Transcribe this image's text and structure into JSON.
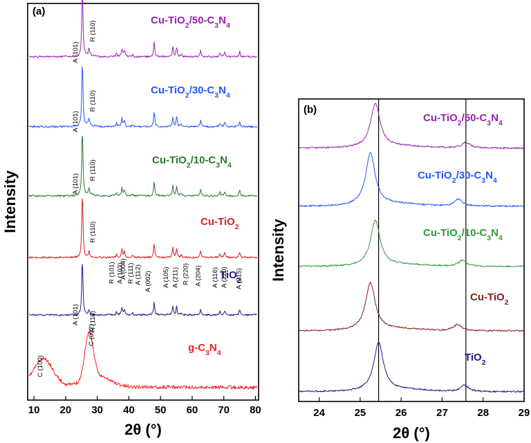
{
  "chart_data": [
    {
      "panel": "(a)",
      "type": "line",
      "xlabel": "2θ (°)",
      "ylabel": "Intensity",
      "xlim": [
        8,
        81
      ],
      "xticks": [
        10,
        20,
        30,
        40,
        50,
        60,
        70,
        80
      ],
      "series": [
        {
          "name": "g-C₃N₄",
          "color": "#ff1a1a",
          "peaks": [
            {
              "x": 13.0,
              "label": "C (100)"
            },
            {
              "x": 27.4,
              "label": "C (002)"
            }
          ]
        },
        {
          "name": "TiO₂",
          "color": "#1a1a8c",
          "peaks": [
            {
              "x": 25.3,
              "label": "A (101)"
            },
            {
              "x": 27.4,
              "label": "R (110)"
            },
            {
              "x": 36.1,
              "label": "R (101)"
            },
            {
              "x": 37.8,
              "label": "A (103)"
            },
            {
              "x": 38.6,
              "label": "A (004)"
            },
            {
              "x": 41.2,
              "label": "R (111)"
            },
            {
              "x": 44.0,
              "label": "A (112)"
            },
            {
              "x": 48.0,
              "label": "A (002)"
            },
            {
              "x": 53.9,
              "label": "A (105)"
            },
            {
              "x": 55.1,
              "label": "A (211)"
            },
            {
              "x": 56.6,
              "label": "R (220)"
            },
            {
              "x": 62.7,
              "label": "A (204)"
            },
            {
              "x": 68.8,
              "label": "A (116)"
            },
            {
              "x": 70.3,
              "label": "A (220)"
            },
            {
              "x": 75.0,
              "label": "A (215)"
            }
          ]
        },
        {
          "name": "Cu-TiO₂",
          "color": "#d42020",
          "peaks": [
            {
              "x": 25.3,
              "label": "A (101)"
            },
            {
              "x": 27.4,
              "label": "R (110)"
            }
          ]
        },
        {
          "name": "Cu-TiO₂/10-C₃N₄",
          "color": "#237a2a",
          "peaks": [
            {
              "x": 25.3,
              "label": "A (101)"
            },
            {
              "x": 27.4,
              "label": "R (110)"
            }
          ]
        },
        {
          "name": "Cu-TiO₂/30-C₃N₄",
          "color": "#2255ff",
          "peaks": [
            {
              "x": 25.3,
              "label": "A (101)"
            },
            {
              "x": 27.4,
              "label": "R (110)"
            }
          ]
        },
        {
          "name": "Cu-TiO₂/50-C₃N₄",
          "color": "#9b1fb5",
          "peaks": [
            {
              "x": 25.3,
              "label": "A (101)"
            },
            {
              "x": 27.4,
              "label": "R (110)"
            }
          ]
        }
      ]
    },
    {
      "panel": "(b)",
      "type": "line",
      "xlabel": "2θ (°)",
      "ylabel": "Intensity",
      "xlim": [
        23.5,
        29.0
      ],
      "xticks": [
        24,
        25,
        26,
        27,
        28,
        29
      ],
      "reference_lines_x": [
        25.45,
        27.58
      ],
      "series": [
        {
          "name": "TiO₂",
          "color": "#1a1a8c",
          "peak_x": [
            25.45,
            27.55
          ]
        },
        {
          "name": "Cu-TiO₂",
          "color": "#8b1a1a",
          "peak_x": [
            25.25,
            27.38
          ]
        },
        {
          "name": "Cu-TiO₂/10-C₃N₄",
          "color": "#2e9a3a",
          "peak_x": [
            25.37,
            27.5
          ]
        },
        {
          "name": "Cu-TiO₂/30-C₃N₄",
          "color": "#2255ff",
          "peak_x": [
            25.25,
            27.4
          ]
        },
        {
          "name": "Cu-TiO₂/50-C₃N₄",
          "color": "#9b1fb5",
          "peak_x": [
            25.37,
            27.58
          ]
        }
      ]
    }
  ]
}
